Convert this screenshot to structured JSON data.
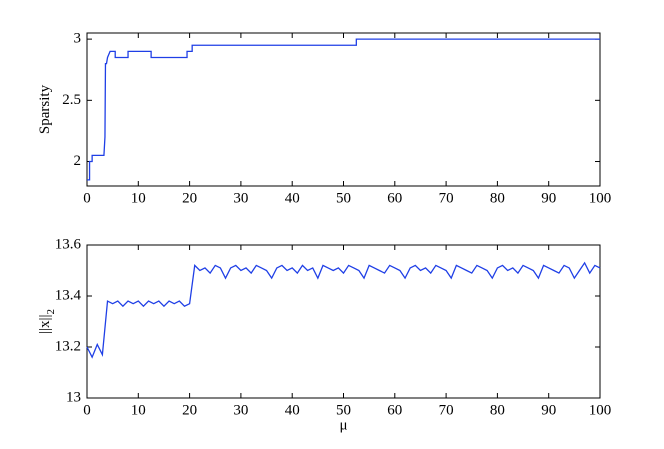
{
  "chart_data": [
    {
      "type": "line",
      "ylabel": "Sparsity",
      "color": "#1f3fe6",
      "x": [
        0,
        0.5,
        0.5,
        1,
        1,
        3.3,
        3.5,
        3.6,
        3.8,
        4,
        4.5,
        5.5,
        5.5,
        8,
        8,
        12.5,
        12.5,
        19.5,
        19.5,
        20.5,
        20.5,
        52.5,
        52.5,
        100
      ],
      "values": [
        1.85,
        1.85,
        2,
        2,
        2.05,
        2.05,
        2.2,
        2.8,
        2.8,
        2.85,
        2.9,
        2.9,
        2.85,
        2.85,
        2.9,
        2.9,
        2.85,
        2.85,
        2.9,
        2.9,
        2.95,
        2.95,
        3,
        3
      ],
      "xlim": [
        0,
        100
      ],
      "ylim": [
        1.8,
        3.05
      ],
      "xticks": [
        0,
        10,
        20,
        30,
        40,
        50,
        60,
        70,
        80,
        90,
        100
      ],
      "yticks": [
        2,
        2.5,
        3
      ]
    },
    {
      "type": "line",
      "ylabel": "||x||",
      "ylabel_subscript": "2",
      "xlabel": "μ",
      "color": "#1f3fe6",
      "x": [
        0,
        1,
        2,
        3,
        4,
        5,
        6,
        7,
        8,
        9,
        10,
        11,
        12,
        13,
        14,
        15,
        16,
        17,
        18,
        19,
        20,
        21,
        22,
        23,
        24,
        25,
        26,
        27,
        28,
        29,
        30,
        31,
        32,
        33,
        34,
        35,
        36,
        37,
        38,
        39,
        40,
        41,
        42,
        43,
        44,
        45,
        46,
        47,
        48,
        49,
        50,
        51,
        52,
        53,
        54,
        55,
        56,
        57,
        58,
        59,
        60,
        61,
        62,
        63,
        64,
        65,
        66,
        67,
        68,
        69,
        70,
        71,
        72,
        73,
        74,
        75,
        76,
        77,
        78,
        79,
        80,
        81,
        82,
        83,
        84,
        85,
        86,
        87,
        88,
        89,
        90,
        91,
        92,
        93,
        94,
        95,
        96,
        97,
        98,
        99,
        100
      ],
      "values": [
        13.2,
        13.16,
        13.21,
        13.17,
        13.38,
        13.37,
        13.38,
        13.36,
        13.38,
        13.37,
        13.38,
        13.36,
        13.38,
        13.37,
        13.38,
        13.36,
        13.38,
        13.37,
        13.38,
        13.36,
        13.37,
        13.52,
        13.5,
        13.51,
        13.49,
        13.52,
        13.51,
        13.47,
        13.51,
        13.52,
        13.5,
        13.51,
        13.49,
        13.52,
        13.51,
        13.5,
        13.47,
        13.51,
        13.52,
        13.5,
        13.51,
        13.49,
        13.52,
        13.5,
        13.51,
        13.47,
        13.52,
        13.51,
        13.5,
        13.51,
        13.49,
        13.52,
        13.51,
        13.5,
        13.47,
        13.52,
        13.51,
        13.5,
        13.49,
        13.52,
        13.51,
        13.5,
        13.47,
        13.51,
        13.52,
        13.5,
        13.51,
        13.49,
        13.52,
        13.51,
        13.5,
        13.47,
        13.52,
        13.51,
        13.5,
        13.49,
        13.52,
        13.51,
        13.5,
        13.47,
        13.51,
        13.52,
        13.5,
        13.51,
        13.49,
        13.52,
        13.51,
        13.5,
        13.47,
        13.52,
        13.51,
        13.5,
        13.49,
        13.52,
        13.51,
        13.47,
        13.5,
        13.53,
        13.49,
        13.52,
        13.51
      ],
      "xlim": [
        0,
        100
      ],
      "ylim": [
        13,
        13.6
      ],
      "xticks": [
        0,
        10,
        20,
        30,
        40,
        50,
        60,
        70,
        80,
        90,
        100
      ],
      "yticks": [
        13,
        13.2,
        13.4,
        13.6
      ]
    }
  ]
}
